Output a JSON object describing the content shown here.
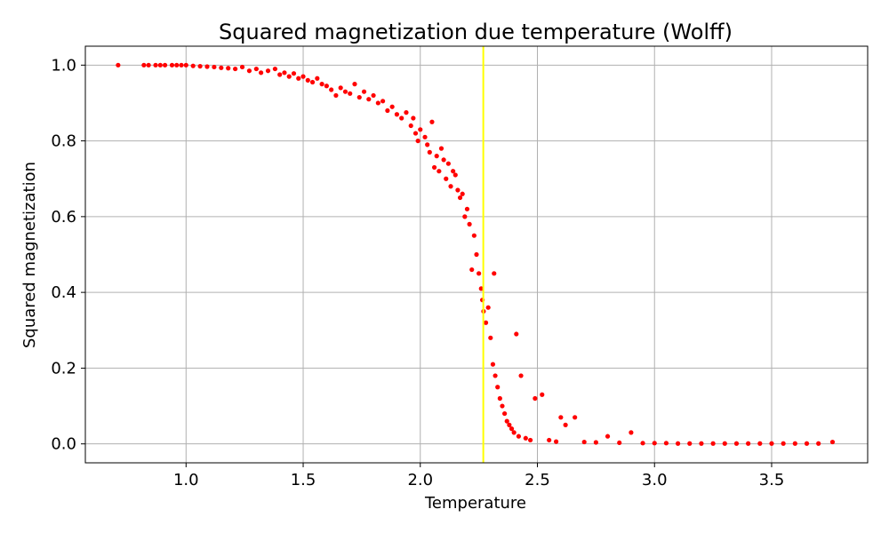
{
  "chart_data": {
    "type": "scatter",
    "title": "Squared magnetization due temperature (Wolff)",
    "xlabel": "Temperature",
    "ylabel": "Squared magnetization",
    "xlim": [
      0.57,
      3.91
    ],
    "ylim": [
      -0.05,
      1.05
    ],
    "xticks": [
      1.0,
      1.5,
      2.0,
      2.5,
      3.0,
      3.5
    ],
    "xtick_labels": [
      "1.0",
      "1.5",
      "2.0",
      "2.5",
      "3.0",
      "3.5"
    ],
    "yticks": [
      0.0,
      0.2,
      0.4,
      0.6,
      0.8,
      1.0
    ],
    "ytick_labels": [
      "0.0",
      "0.2",
      "0.4",
      "0.6",
      "0.8",
      "1.0"
    ],
    "grid": true,
    "marker_color": "#ff0000",
    "vline": {
      "x": 2.269,
      "color": "#ffff00"
    },
    "points": [
      [
        0.71,
        1.0
      ],
      [
        0.82,
        1.0
      ],
      [
        0.84,
        1.0
      ],
      [
        0.87,
        1.0
      ],
      [
        0.89,
        1.0
      ],
      [
        0.91,
        1.0
      ],
      [
        0.94,
        1.0
      ],
      [
        0.96,
        1.0
      ],
      [
        0.98,
        1.0
      ],
      [
        1.0,
        1.0
      ],
      [
        1.03,
        0.998
      ],
      [
        1.06,
        0.997
      ],
      [
        1.09,
        0.996
      ],
      [
        1.12,
        0.995
      ],
      [
        1.15,
        0.993
      ],
      [
        1.18,
        0.992
      ],
      [
        1.21,
        0.99
      ],
      [
        1.24,
        0.995
      ],
      [
        1.27,
        0.985
      ],
      [
        1.3,
        0.99
      ],
      [
        1.32,
        0.98
      ],
      [
        1.35,
        0.985
      ],
      [
        1.38,
        0.99
      ],
      [
        1.4,
        0.975
      ],
      [
        1.42,
        0.98
      ],
      [
        1.44,
        0.97
      ],
      [
        1.46,
        0.978
      ],
      [
        1.48,
        0.965
      ],
      [
        1.5,
        0.97
      ],
      [
        1.52,
        0.96
      ],
      [
        1.54,
        0.955
      ],
      [
        1.56,
        0.965
      ],
      [
        1.58,
        0.95
      ],
      [
        1.6,
        0.945
      ],
      [
        1.62,
        0.935
      ],
      [
        1.64,
        0.92
      ],
      [
        1.66,
        0.94
      ],
      [
        1.68,
        0.93
      ],
      [
        1.7,
        0.925
      ],
      [
        1.72,
        0.95
      ],
      [
        1.74,
        0.915
      ],
      [
        1.76,
        0.93
      ],
      [
        1.78,
        0.91
      ],
      [
        1.8,
        0.92
      ],
      [
        1.82,
        0.9
      ],
      [
        1.84,
        0.905
      ],
      [
        1.86,
        0.88
      ],
      [
        1.88,
        0.89
      ],
      [
        1.9,
        0.87
      ],
      [
        1.92,
        0.86
      ],
      [
        1.94,
        0.875
      ],
      [
        1.96,
        0.84
      ],
      [
        1.97,
        0.86
      ],
      [
        1.98,
        0.82
      ],
      [
        1.99,
        0.8
      ],
      [
        2.0,
        0.83
      ],
      [
        2.02,
        0.81
      ],
      [
        2.03,
        0.79
      ],
      [
        2.04,
        0.77
      ],
      [
        2.05,
        0.85
      ],
      [
        2.06,
        0.73
      ],
      [
        2.07,
        0.76
      ],
      [
        2.08,
        0.72
      ],
      [
        2.09,
        0.78
      ],
      [
        2.1,
        0.75
      ],
      [
        2.11,
        0.7
      ],
      [
        2.12,
        0.74
      ],
      [
        2.13,
        0.68
      ],
      [
        2.14,
        0.72
      ],
      [
        2.15,
        0.71
      ],
      [
        2.16,
        0.67
      ],
      [
        2.17,
        0.65
      ],
      [
        2.18,
        0.66
      ],
      [
        2.19,
        0.6
      ],
      [
        2.2,
        0.62
      ],
      [
        2.21,
        0.58
      ],
      [
        2.22,
        0.46
      ],
      [
        2.23,
        0.55
      ],
      [
        2.24,
        0.5
      ],
      [
        2.25,
        0.45
      ],
      [
        2.26,
        0.41
      ],
      [
        2.265,
        0.38
      ],
      [
        2.27,
        0.35
      ],
      [
        2.28,
        0.32
      ],
      [
        2.29,
        0.36
      ],
      [
        2.3,
        0.28
      ],
      [
        2.31,
        0.21
      ],
      [
        2.315,
        0.45
      ],
      [
        2.32,
        0.18
      ],
      [
        2.33,
        0.15
      ],
      [
        2.34,
        0.12
      ],
      [
        2.35,
        0.1
      ],
      [
        2.36,
        0.08
      ],
      [
        2.37,
        0.06
      ],
      [
        2.38,
        0.05
      ],
      [
        2.39,
        0.04
      ],
      [
        2.4,
        0.03
      ],
      [
        2.41,
        0.29
      ],
      [
        2.42,
        0.02
      ],
      [
        2.43,
        0.18
      ],
      [
        2.45,
        0.015
      ],
      [
        2.47,
        0.01
      ],
      [
        2.49,
        0.12
      ],
      [
        2.52,
        0.13
      ],
      [
        2.55,
        0.01
      ],
      [
        2.58,
        0.006
      ],
      [
        2.6,
        0.07
      ],
      [
        2.62,
        0.05
      ],
      [
        2.66,
        0.07
      ],
      [
        2.7,
        0.005
      ],
      [
        2.75,
        0.004
      ],
      [
        2.8,
        0.02
      ],
      [
        2.85,
        0.003
      ],
      [
        2.9,
        0.03
      ],
      [
        2.95,
        0.002
      ],
      [
        3.0,
        0.002
      ],
      [
        3.05,
        0.002
      ],
      [
        3.1,
        0.001
      ],
      [
        3.15,
        0.001
      ],
      [
        3.2,
        0.001
      ],
      [
        3.25,
        0.001
      ],
      [
        3.3,
        0.001
      ],
      [
        3.35,
        0.001
      ],
      [
        3.4,
        0.001
      ],
      [
        3.45,
        0.001
      ],
      [
        3.5,
        0.001
      ],
      [
        3.55,
        0.001
      ],
      [
        3.6,
        0.001
      ],
      [
        3.65,
        0.001
      ],
      [
        3.7,
        0.001
      ],
      [
        3.76,
        0.005
      ]
    ]
  }
}
